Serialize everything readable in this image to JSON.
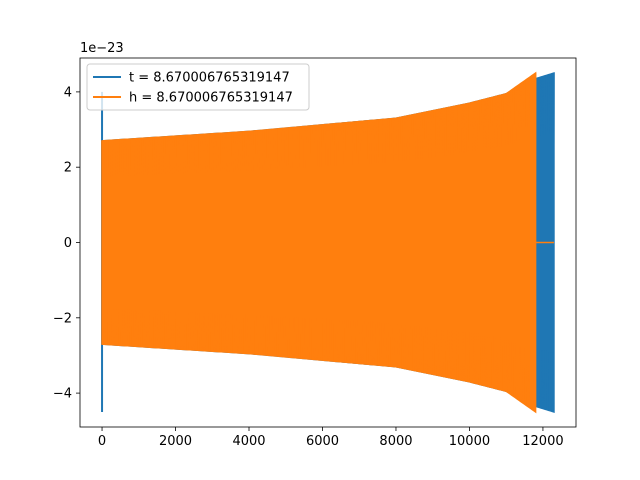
{
  "chart_data": {
    "type": "line",
    "title": "",
    "xlabel": "",
    "ylabel": "",
    "xlim": [
      -600,
      12900
    ],
    "ylim": [
      -4.9,
      4.9
    ],
    "y_offset_label": "1e−23",
    "x_ticks": [
      0,
      2000,
      4000,
      6000,
      8000,
      10000,
      12000
    ],
    "y_ticks": [
      -4,
      -2,
      0,
      2,
      4
    ],
    "grid": false,
    "legend_position": "top-left",
    "series": [
      {
        "name": "t = 8.670006765319147",
        "color": "#1f77b4",
        "end_x": 12300,
        "start_spike": [
          -4.5,
          4.0
        ],
        "envelope": [
          [
            0,
            2.7
          ],
          [
            4000,
            2.95
          ],
          [
            8000,
            3.3
          ],
          [
            10000,
            3.7
          ],
          [
            11000,
            3.95
          ],
          [
            11800,
            4.35
          ],
          [
            12300,
            4.5
          ]
        ]
      },
      {
        "name": "h = 8.670006765319147",
        "color": "#ff7f0e",
        "end_x": 11800,
        "tail_x": [
          11800,
          12300
        ],
        "tail_y": 0,
        "envelope": [
          [
            0,
            2.7
          ],
          [
            4000,
            2.95
          ],
          [
            8000,
            3.3
          ],
          [
            10000,
            3.7
          ],
          [
            11000,
            3.95
          ],
          [
            11800,
            4.5
          ]
        ]
      }
    ]
  }
}
